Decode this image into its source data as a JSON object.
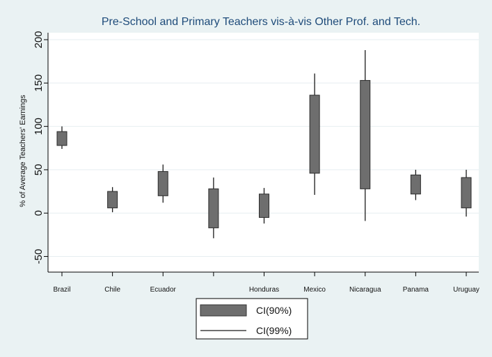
{
  "chart_data": {
    "type": "candlestick",
    "title": "Pre-School and Primary Teachers vis-à-vis Other Prof. and Tech.",
    "xlabel": "",
    "ylabel": "% of Average Teachers' Earnings",
    "ylim": [
      -60,
      200
    ],
    "yticks": [
      -50,
      0,
      50,
      100,
      150,
      200
    ],
    "grid": true,
    "legend_position": "bottom",
    "colors": {
      "box": "#6e6e6e",
      "whisker": "#1a1a1a",
      "plot_bg": "#ffffff",
      "page_bg": "#eaf2f3",
      "grid": "#e6eef0"
    },
    "categories": [
      "Brazil",
      "Chile",
      "Ecuador",
      "",
      "Honduras",
      "Mexico",
      "Nicaragua",
      "Panama",
      "Uruguay"
    ],
    "series": [
      {
        "name": "CI(90%)",
        "low": [
          78,
          6,
          20,
          -17,
          -5,
          46,
          28,
          22,
          6
        ],
        "high": [
          94,
          25,
          48,
          28,
          22,
          136,
          153,
          44,
          41
        ]
      },
      {
        "name": "CI(99%)",
        "low": [
          74,
          1,
          12,
          -29,
          -12,
          21,
          -9,
          15,
          -4
        ],
        "high": [
          100,
          30,
          56,
          41,
          29,
          161,
          188,
          50,
          50
        ]
      }
    ]
  }
}
